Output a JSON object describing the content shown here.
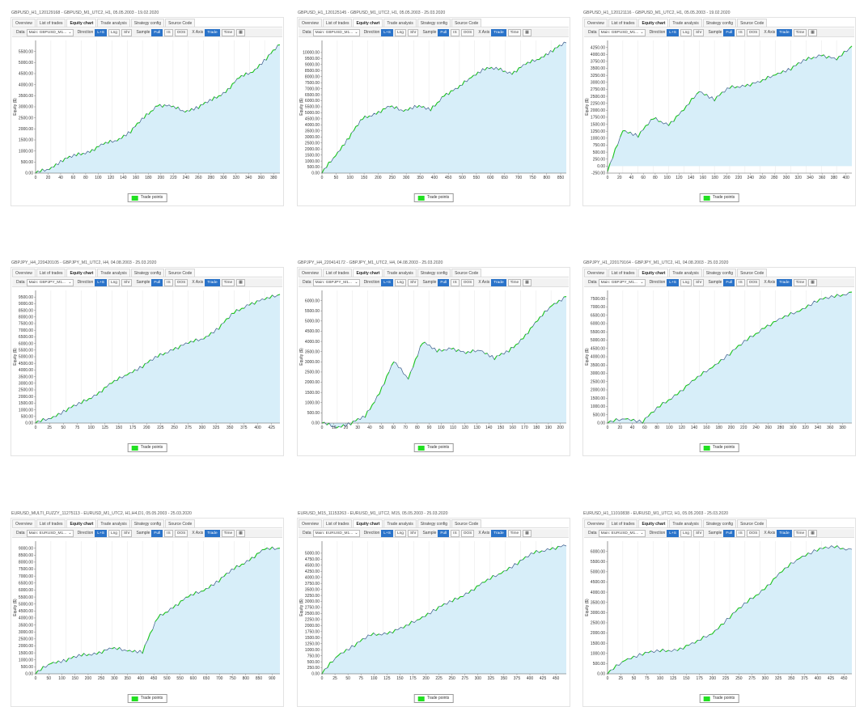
{
  "tabs": [
    "Overview",
    "List of trades",
    "Equity chart",
    "Trade analysis",
    "Strategy config",
    "Source Code"
  ],
  "active_tab": "Equity chart",
  "toolbar": {
    "data_label": "Data",
    "direction_label": "Direction",
    "dir_buttons": [
      "L+S",
      "Lng",
      "Shr"
    ],
    "sample_label": "Sample",
    "sample_buttons": [
      "Full",
      "IS",
      "OOS"
    ],
    "xaxis_label": "X Axis",
    "xaxis_buttons": [
      "Trade",
      "Time"
    ]
  },
  "legend_label": "Trade points",
  "ylabel": "Equity ($)",
  "colors": {
    "fill": "#d7eef9",
    "line": "#3b5b8a",
    "trade": "#1fc81f",
    "active": "#2a73c9"
  },
  "panels": [
    {
      "title": "GBPUSD_H1_120129168 - GBPUSD_M1_UTC2, H1, 05.05.2003 - 19.02.2020",
      "data_select": "Main: GBPUSD_M1...",
      "chart_data": {
        "type": "line",
        "ylim": [
          0,
          6000
        ],
        "yticks": [
          0,
          500,
          1000,
          1500,
          2000,
          2500,
          3000,
          3500,
          4000,
          4500,
          5000,
          5500
        ],
        "xticks": [
          0,
          20,
          40,
          60,
          80,
          100,
          120,
          140,
          160,
          180,
          200,
          220,
          240,
          260,
          280,
          300,
          320,
          340,
          360,
          380
        ],
        "xmax": 390,
        "y": [
          0,
          200,
          600,
          800,
          1000,
          1300,
          1500,
          1900,
          2500,
          3100,
          3000,
          2800,
          3000,
          3300,
          3700,
          4300,
          4600,
          5200,
          5800
        ]
      }
    },
    {
      "title": "GBPUSD_H1_120125145 - GBPUSD_M1_UTC2, H1, 05.05.2003 - 25.03.2020",
      "data_select": "Main: GBPUSD_M1...",
      "chart_data": {
        "type": "line",
        "ylim": [
          0,
          11000
        ],
        "yticks": [
          0,
          500,
          1000,
          1500,
          2000,
          2500,
          3000,
          3500,
          4000,
          4500,
          5000,
          5500,
          6000,
          6500,
          7000,
          7500,
          8000,
          8500,
          9000,
          9500,
          10000
        ],
        "xticks": [
          0,
          50,
          100,
          150,
          200,
          250,
          300,
          350,
          400,
          450,
          500,
          550,
          600,
          650,
          700,
          750,
          800,
          850
        ],
        "xmax": 870,
        "y": [
          0,
          1500,
          3000,
          4500,
          5000,
          5500,
          5200,
          5600,
          5200,
          6500,
          7000,
          8000,
          8700,
          8600,
          8300,
          9000,
          9500,
          10200,
          10800
        ]
      }
    },
    {
      "title": "GBPUSD_H1_120121116 - GBPUSD_M1_UTC2, H1, 05.05.2003 - 19.02.2020",
      "data_select": "Main: GBPUSD_M1...",
      "chart_data": {
        "type": "line",
        "ylim": [
          -250,
          4500
        ],
        "yticks": [
          -250,
          0,
          250,
          500,
          750,
          1000,
          1250,
          1500,
          1750,
          2000,
          2250,
          2500,
          2750,
          3000,
          3250,
          3500,
          3750,
          4000,
          4250
        ],
        "xticks": [
          0,
          20,
          40,
          60,
          80,
          100,
          120,
          140,
          160,
          180,
          200,
          220,
          240,
          260,
          280,
          300,
          320,
          340,
          360,
          380,
          400
        ],
        "xmax": 410,
        "y": [
          -200,
          1300,
          1100,
          1700,
          1500,
          2000,
          2700,
          2400,
          2800,
          2900,
          3000,
          3300,
          3500,
          3800,
          4000,
          3800,
          4300
        ]
      }
    },
    {
      "title": "GBPJPY_H4_220420105 - GBPJPY_M1_UTC2, H4, 04.08.2003 - 25.03.2020",
      "data_select": "Main: GBPJPY_M1...",
      "chart_data": {
        "type": "line",
        "ylim": [
          0,
          10000
        ],
        "yticks": [
          0,
          500,
          1000,
          1500,
          2000,
          2500,
          3000,
          3500,
          4000,
          4500,
          5000,
          5500,
          6000,
          6500,
          7000,
          7500,
          8000,
          8500,
          9000,
          9500
        ],
        "xticks": [
          0,
          25,
          50,
          75,
          100,
          125,
          150,
          175,
          200,
          225,
          250,
          275,
          300,
          325,
          350,
          375,
          400,
          425
        ],
        "xmax": 440,
        "y": [
          0,
          400,
          1000,
          1500,
          2200,
          3000,
          3700,
          4300,
          5000,
          5600,
          6000,
          6400,
          7200,
          8300,
          9000,
          9300,
          9700
        ]
      }
    },
    {
      "title": "GBPJPY_H4_220414172 - GBPJPY_M1_UTC2, H4, 04.08.2003 - 25.03.2020",
      "data_select": "Main: GBPJPY_M1...",
      "chart_data": {
        "type": "line",
        "ylim": [
          0,
          6500
        ],
        "yticks": [
          0,
          500,
          1000,
          1500,
          2000,
          2500,
          3000,
          3500,
          4000,
          4500,
          5000,
          5500,
          6000
        ],
        "xticks": [
          0,
          10,
          20,
          30,
          40,
          50,
          60,
          70,
          80,
          90,
          100,
          110,
          120,
          130,
          140,
          150,
          160,
          170,
          180,
          190,
          200
        ],
        "xmax": 205,
        "y": [
          0,
          -200,
          0,
          300,
          1500,
          3000,
          2200,
          4000,
          3500,
          3700,
          3400,
          3600,
          3200,
          3500,
          4200,
          5000,
          5800,
          6200
        ]
      }
    },
    {
      "title": "GBPJPY_H1_220179164 - GBPJPY_M1_UTC2, H1, 04.08.2003 - 25.03.2020",
      "data_select": "Main: GBPJPY_M1...",
      "chart_data": {
        "type": "line",
        "ylim": [
          0,
          8000
        ],
        "yticks": [
          0,
          500,
          1000,
          1500,
          2000,
          2500,
          3000,
          3500,
          4000,
          4500,
          5000,
          5500,
          6000,
          6500,
          7000,
          7500
        ],
        "xticks": [
          0,
          20,
          40,
          60,
          80,
          100,
          120,
          140,
          160,
          180,
          200,
          220,
          240,
          260,
          280,
          300,
          320,
          340,
          360,
          380
        ],
        "xmax": 395,
        "y": [
          0,
          300,
          100,
          1000,
          1800,
          2600,
          3400,
          4200,
          5000,
          5800,
          6300,
          6800,
          7400,
          7600,
          7900
        ]
      }
    },
    {
      "title": "EURUSD_MULTI_FUZZY_11275113 - EURUSD_M1_UTC2, H1,H4,D1, 05.05.2003 - 25.03.2020",
      "data_select": "Main: EURUSD_M1...",
      "chart_data": {
        "type": "line",
        "ylim": [
          0,
          9500
        ],
        "yticks": [
          0,
          500,
          1000,
          1500,
          2000,
          2500,
          3000,
          3500,
          4000,
          4500,
          5000,
          5500,
          6000,
          6500,
          7000,
          7500,
          8000,
          8500,
          9000
        ],
        "xticks": [
          0,
          50,
          100,
          150,
          200,
          250,
          300,
          350,
          400,
          450,
          500,
          550,
          600,
          650,
          700,
          750,
          800,
          850,
          900
        ],
        "xmax": 930,
        "y": [
          0,
          800,
          1000,
          1300,
          1500,
          1800,
          1700,
          1600,
          4000,
          4800,
          5500,
          6000,
          6700,
          7500,
          8200,
          8900,
          9000
        ]
      }
    },
    {
      "title": "EURUSD_M15_11153263 - EURUSD_M1_UTC2, M15, 05.05.2003 - 25.03.2020",
      "data_select": "Main: EURUSD_M1...",
      "chart_data": {
        "type": "line",
        "ylim": [
          0,
          5500
        ],
        "yticks": [
          0,
          250,
          500,
          750,
          1000,
          1250,
          1500,
          1750,
          2000,
          2250,
          2500,
          2750,
          3000,
          3250,
          3500,
          3750,
          4000,
          4250,
          4500,
          4750,
          5000
        ],
        "xticks": [
          0,
          25,
          50,
          75,
          100,
          125,
          150,
          175,
          200,
          225,
          250,
          275,
          300,
          325,
          350,
          375,
          400,
          425,
          450
        ],
        "xmax": 470,
        "y": [
          0,
          800,
          1200,
          1600,
          1700,
          1900,
          2300,
          2700,
          3000,
          3400,
          3800,
          4200,
          4600,
          5000,
          5200,
          5300
        ]
      }
    },
    {
      "title": "EURUSD_H1_11010838 - EURUSD_M1_UTC2, H1, 05.05.2003 - 25.03.2020",
      "data_select": "Main: EURUSD_M1...",
      "chart_data": {
        "type": "line",
        "ylim": [
          0,
          6500
        ],
        "yticks": [
          0,
          500,
          1000,
          1500,
          2000,
          2500,
          3000,
          3500,
          4000,
          4500,
          5000,
          5500,
          6000
        ],
        "xticks": [
          0,
          25,
          50,
          75,
          100,
          125,
          150,
          175,
          200,
          225,
          250,
          275,
          300,
          325,
          350,
          375,
          400,
          425,
          450
        ],
        "xmax": 465,
        "y": [
          0,
          700,
          1000,
          1100,
          1200,
          1500,
          2000,
          2800,
          3500,
          4200,
          5000,
          5700,
          6100,
          6200,
          6100
        ]
      }
    }
  ]
}
